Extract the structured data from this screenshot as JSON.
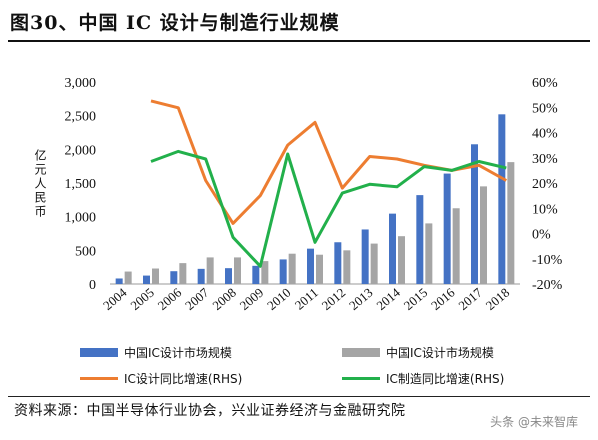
{
  "title": "图30、中国 IC 设计与制造行业规模",
  "source": "资料来源：中国半导体行业协会，兴业证券经济与金融研究院",
  "watermark": "头条 @未来智库",
  "chart_data": {
    "type": "bar+line",
    "categories": [
      "2004",
      "2005",
      "2006",
      "2007",
      "2008",
      "2009",
      "2010",
      "2011",
      "2012",
      "2013",
      "2014",
      "2015",
      "2016",
      "2017",
      "2018"
    ],
    "ylabel": "亿元人民币",
    "ylim": [
      0,
      3000
    ],
    "yticks": [
      "0",
      "500",
      "1,000",
      "1,500",
      "2,000",
      "2,500",
      "3,000"
    ],
    "y2lim": [
      -20,
      60
    ],
    "y2ticks": [
      "-20%",
      "-10%",
      "0%",
      "10%",
      "20%",
      "30%",
      "40%",
      "50%",
      "60%"
    ],
    "legend_position": "bottom",
    "grid": false,
    "series": [
      {
        "name": "中国IC设计市场规模",
        "kind": "bar",
        "axis": "left",
        "color": "#4472C4",
        "values": [
          82,
          125,
          190,
          225,
          235,
          270,
          365,
          525,
          620,
          810,
          1045,
          1320,
          1640,
          2075,
          2520
        ]
      },
      {
        "name": "中国IC设计市场规模",
        "kind": "bar",
        "axis": "left",
        "color": "#A5A5A5",
        "values": [
          185,
          230,
          310,
          395,
          395,
          340,
          450,
          435,
          500,
          600,
          710,
          900,
          1125,
          1450,
          1810
        ]
      },
      {
        "name": "IC设计同比增速(RHS)",
        "kind": "line",
        "axis": "right",
        "color": "#ED7D31",
        "values": [
          null,
          52.5,
          49.8,
          21,
          4,
          15,
          35,
          44,
          18,
          30.5,
          29.5,
          27,
          25,
          27,
          21
        ]
      },
      {
        "name": "IC制造同比增速(RHS)",
        "kind": "line",
        "axis": "right",
        "color": "#22B04B",
        "values": [
          null,
          28.5,
          32.5,
          29.5,
          -1.5,
          -13,
          31.5,
          -3.5,
          16,
          19.5,
          18.5,
          26.5,
          25,
          28.5,
          26
        ]
      }
    ]
  }
}
